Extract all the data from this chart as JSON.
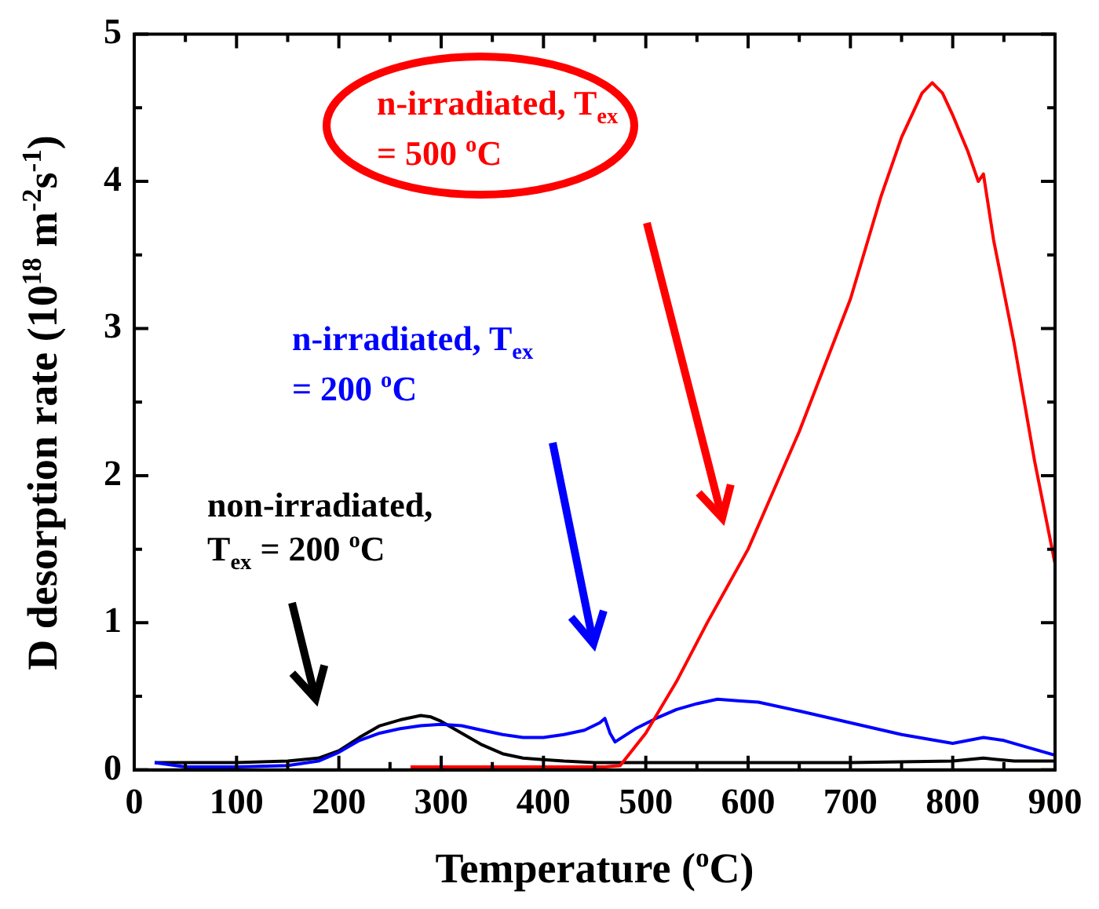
{
  "chart_data": {
    "type": "line",
    "xlabel": "Temperature ($^{o}$C)",
    "ylabel": "D desorption rate (10$^{18}$ m$^{-2}$s$^{-1}$)",
    "xlim": [
      0,
      900
    ],
    "ylim": [
      0,
      5
    ],
    "xticks": [
      0,
      {
        "value": 50,
        "label": null
      },
      100,
      {
        "value": 150,
        "label": null
      },
      200,
      {
        "value": 250,
        "label": null
      },
      300,
      {
        "value": 350,
        "label": null
      },
      400,
      {
        "value": 450,
        "label": null
      },
      500,
      {
        "value": 550,
        "label": null
      },
      600,
      {
        "value": 650,
        "label": null
      },
      700,
      {
        "value": 750,
        "label": null
      },
      800,
      {
        "value": 850,
        "label": null
      },
      900
    ],
    "yticks": [
      0,
      {
        "value": 0.5,
        "label": null
      },
      1,
      {
        "value": 1.5,
        "label": null
      },
      2,
      {
        "value": 2.5,
        "label": null
      },
      3,
      {
        "value": 3.5,
        "label": null
      },
      4,
      {
        "value": 4.5,
        "label": null
      },
      5
    ],
    "grid": false,
    "legend": false,
    "marker": "none",
    "line_style": "solid",
    "series": [
      {
        "name": "non-irradiated, T$_{ex}$ = 200 $^{o}$C",
        "color": "#000000",
        "x": [
          20,
          50,
          100,
          150,
          180,
          200,
          220,
          240,
          260,
          280,
          290,
          300,
          320,
          340,
          360,
          380,
          400,
          420,
          450,
          500,
          600,
          700,
          800,
          830,
          860,
          900
        ],
        "values": [
          0.05,
          0.05,
          0.05,
          0.06,
          0.08,
          0.13,
          0.22,
          0.3,
          0.34,
          0.37,
          0.36,
          0.33,
          0.25,
          0.17,
          0.11,
          0.08,
          0.07,
          0.06,
          0.05,
          0.05,
          0.05,
          0.05,
          0.06,
          0.08,
          0.06,
          0.06
        ]
      },
      {
        "name": "n-irradiated, T$_{ex}$ = 200 $^{o}$C",
        "color": "#0000ff",
        "x": [
          20,
          50,
          100,
          150,
          180,
          200,
          220,
          240,
          260,
          280,
          300,
          320,
          340,
          360,
          380,
          400,
          420,
          440,
          455,
          460,
          465,
          470,
          490,
          510,
          530,
          550,
          570,
          590,
          610,
          650,
          700,
          750,
          800,
          830,
          850,
          870,
          900
        ],
        "values": [
          0.05,
          0.02,
          0.02,
          0.03,
          0.06,
          0.12,
          0.2,
          0.25,
          0.28,
          0.3,
          0.31,
          0.3,
          0.27,
          0.24,
          0.22,
          0.22,
          0.24,
          0.27,
          0.32,
          0.35,
          0.25,
          0.19,
          0.28,
          0.35,
          0.41,
          0.45,
          0.48,
          0.47,
          0.46,
          0.4,
          0.32,
          0.24,
          0.18,
          0.22,
          0.2,
          0.16,
          0.1
        ]
      },
      {
        "name": "n-irradiated, T$_{ex}$ = 500 $^{o}$C",
        "color": "#ff0000",
        "x": [
          270,
          350,
          460,
          475,
          500,
          530,
          560,
          580,
          600,
          650,
          700,
          730,
          750,
          770,
          780,
          790,
          800,
          815,
          825,
          830,
          840,
          860,
          880,
          900
        ],
        "values": [
          0.02,
          0.02,
          0.02,
          0.03,
          0.25,
          0.6,
          1.0,
          1.25,
          1.5,
          2.3,
          3.2,
          3.9,
          4.3,
          4.6,
          4.67,
          4.6,
          4.45,
          4.2,
          4.0,
          4.05,
          3.6,
          2.9,
          2.1,
          1.4
        ]
      }
    ]
  }
}
